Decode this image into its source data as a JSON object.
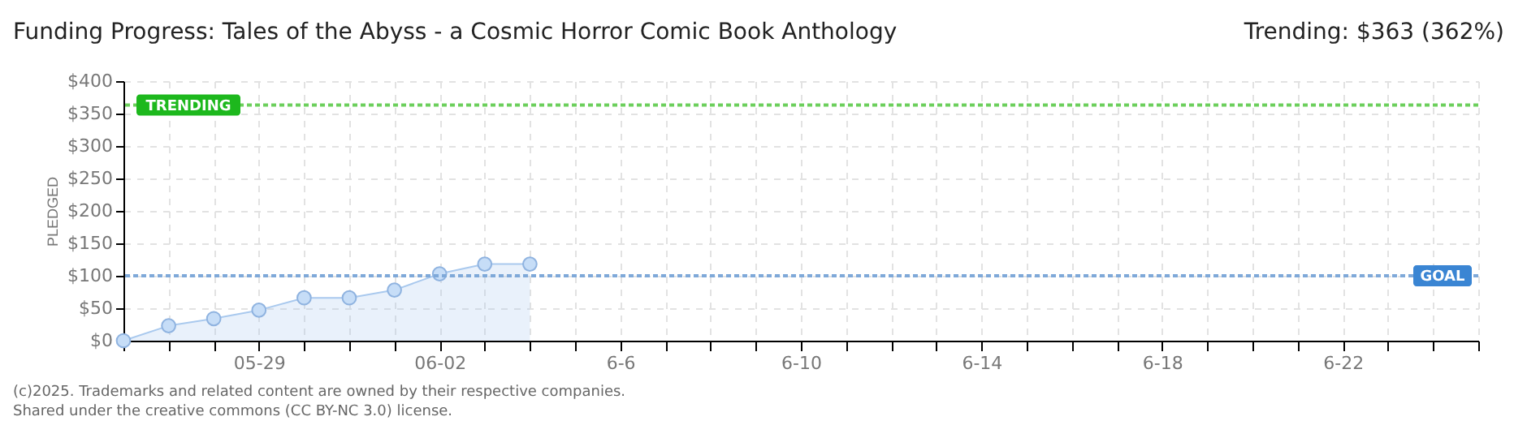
{
  "chart_data": {
    "type": "area",
    "title": "Funding Progress: Tales of the Abyss - a Cosmic Horror Comic Book Anthology",
    "subtitle": "Trending: $363 (362%)",
    "ylabel": "PLEDGED",
    "annotations": [
      "(c)2025. Trademarks and related content are owned by their respective companies.",
      "Shared under the creative commons (CC BY-NC 3.0) license."
    ],
    "x": [
      "2025-05-26",
      "2025-05-27",
      "2025-05-28",
      "2025-05-29",
      "2025-05-30",
      "2025-05-31",
      "2025-06-01",
      "2025-06-02",
      "2025-06-03",
      "2025-06-04"
    ],
    "series": [
      {
        "color": "#a9c9ee",
        "values": [
          0,
          23,
          34,
          47,
          66,
          66,
          78,
          103,
          118,
          118
        ]
      }
    ],
    "xlim": [
      "2025-05-26",
      "2025-06-25"
    ],
    "xticks": [
      {
        "value": "2025-05-26",
        "label": null
      },
      {
        "value": "2025-05-27",
        "label": null
      },
      {
        "value": "2025-05-28",
        "label": null
      },
      {
        "value": "2025-05-29",
        "label": "05-29"
      },
      {
        "value": "2025-05-30",
        "label": null
      },
      {
        "value": "2025-05-31",
        "label": null
      },
      {
        "value": "2025-06-01",
        "label": null
      },
      {
        "value": "2025-06-02",
        "label": "06-02"
      },
      {
        "value": "2025-06-03",
        "label": null
      },
      {
        "value": "2025-06-04",
        "label": null
      },
      {
        "value": "2025-06-05",
        "label": null
      },
      {
        "value": "2025-06-06",
        "label": "6-6"
      },
      {
        "value": "2025-06-07",
        "label": null
      },
      {
        "value": "2025-06-08",
        "label": null
      },
      {
        "value": "2025-06-09",
        "label": null
      },
      {
        "value": "2025-06-10",
        "label": "6-10"
      },
      {
        "value": "2025-06-11",
        "label": null
      },
      {
        "value": "2025-06-12",
        "label": null
      },
      {
        "value": "2025-06-13",
        "label": null
      },
      {
        "value": "2025-06-14",
        "label": "6-14"
      },
      {
        "value": "2025-06-15",
        "label": null
      },
      {
        "value": "2025-06-16",
        "label": null
      },
      {
        "value": "2025-06-17",
        "label": null
      },
      {
        "value": "2025-06-18",
        "label": "6-18"
      },
      {
        "value": "2025-06-19",
        "label": null
      },
      {
        "value": "2025-06-20",
        "label": null
      },
      {
        "value": "2025-06-21",
        "label": null
      },
      {
        "value": "2025-06-22",
        "label": "6-22"
      },
      {
        "value": "2025-06-23",
        "label": null
      },
      {
        "value": "2025-06-24",
        "label": null
      },
      {
        "value": "2025-06-25",
        "label": null
      }
    ],
    "ylim": [
      0,
      400
    ],
    "yticks": [
      {
        "value": 0,
        "label": "$0"
      },
      {
        "value": 50,
        "label": "$50"
      },
      {
        "value": 100,
        "label": "$100"
      },
      {
        "value": 150,
        "label": "$150"
      },
      {
        "value": 200,
        "label": "$200"
      },
      {
        "value": 250,
        "label": "$250"
      },
      {
        "value": 300,
        "label": "$300"
      },
      {
        "value": 350,
        "label": "$350"
      },
      {
        "value": 400,
        "label": "$400"
      }
    ],
    "ref_lines": [
      {
        "axis": "y",
        "value": 363,
        "label": "TRENDING",
        "color": "#6ccf5c",
        "line_style": "dotted"
      },
      {
        "axis": "y",
        "value": 100,
        "label": "GOAL",
        "color": "#7fa9d9",
        "line_style": "dotted"
      }
    ],
    "grid": true,
    "marker": "circle"
  }
}
